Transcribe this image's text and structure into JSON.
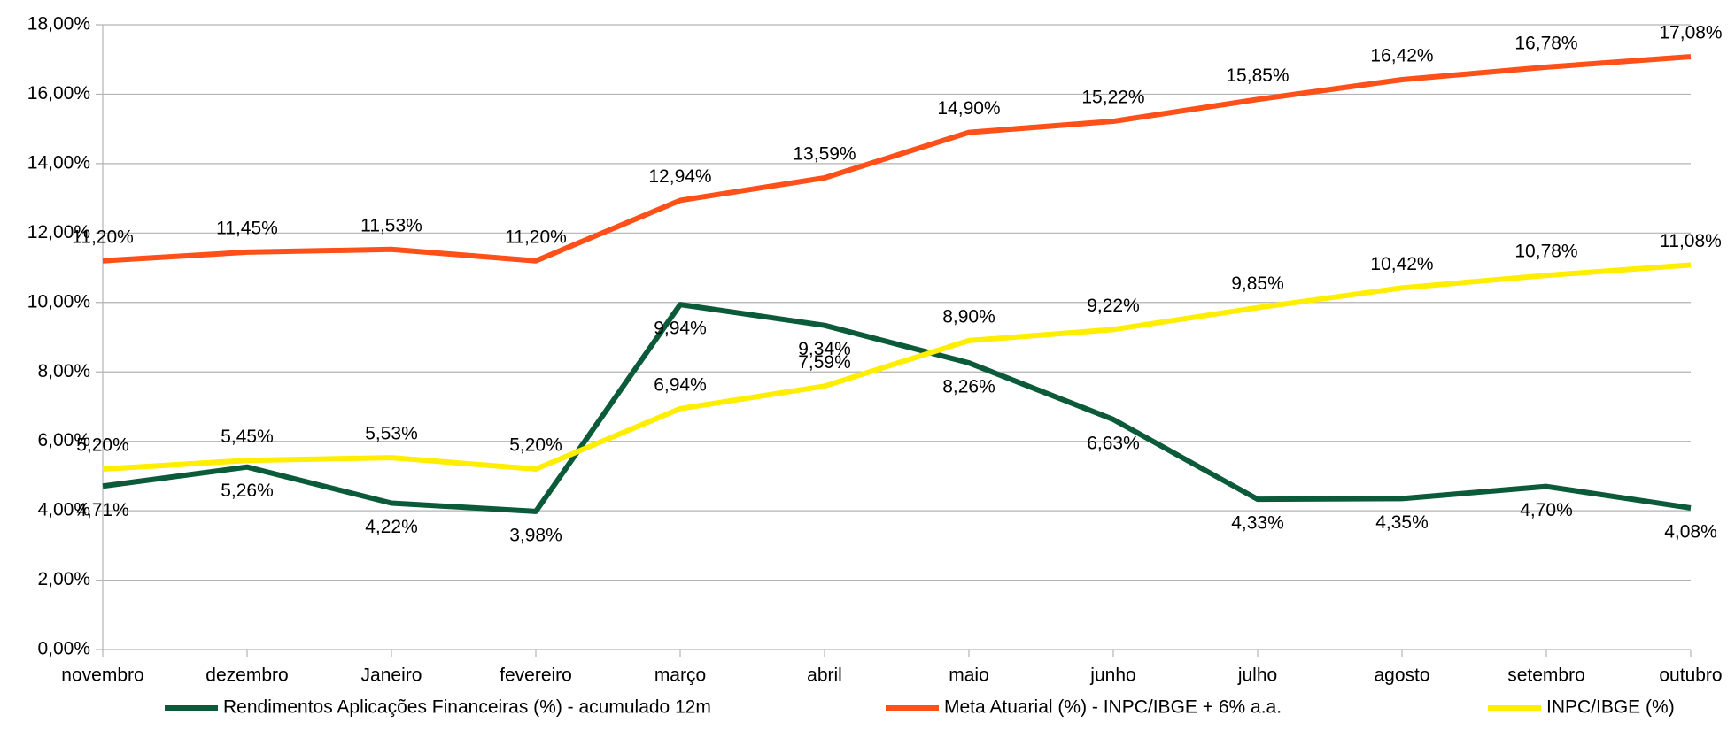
{
  "chart_data": {
    "type": "line",
    "categories": [
      "novembro",
      "dezembro",
      "Janeiro",
      "fevereiro",
      "março",
      "abril",
      "maio",
      "junho",
      "julho",
      "agosto",
      "setembro",
      "outubro"
    ],
    "series": [
      {
        "name": "Rendimentos Aplicações Financeiras (%) - acumulado 12m",
        "color": "#0b5a3a",
        "values": [
          4.71,
          5.26,
          4.22,
          3.98,
          9.94,
          9.34,
          8.26,
          6.63,
          4.33,
          4.35,
          4.7,
          4.08
        ],
        "value_labels": [
          "4,71%",
          "5,26%",
          "4,22%",
          "3,98%",
          "9,94%",
          "9,34%",
          "8,26%",
          "6,63%",
          "4,33%",
          "4,35%",
          "4,70%",
          "4,08%"
        ]
      },
      {
        "name": "Meta Atuarial (%) - INPC/IBGE + 6% a.a.",
        "color": "#ff5019",
        "values": [
          11.2,
          11.45,
          11.53,
          11.2,
          12.94,
          13.59,
          14.9,
          15.22,
          15.85,
          16.42,
          16.78,
          17.08
        ],
        "value_labels": [
          "11,20%",
          "11,45%",
          "11,53%",
          "11,20%",
          "12,94%",
          "13,59%",
          "14,90%",
          "15,22%",
          "15,85%",
          "16,42%",
          "16,78%",
          "17,08%"
        ]
      },
      {
        "name": "INPC/IBGE (%)",
        "color": "#ffee00",
        "values": [
          5.2,
          5.45,
          5.53,
          5.2,
          6.94,
          7.59,
          8.9,
          9.22,
          9.85,
          10.42,
          10.78,
          11.08
        ],
        "value_labels": [
          "5,20%",
          "5,45%",
          "5,53%",
          "5,20%",
          "6,94%",
          "7,59%",
          "8,90%",
          "9,22%",
          "9,85%",
          "10,42%",
          "10,78%",
          "11,08%"
        ]
      }
    ],
    "ylim": [
      0,
      18
    ],
    "yticks": [
      {
        "value": 0,
        "label": "0,00%"
      },
      {
        "value": 2,
        "label": "2,00%"
      },
      {
        "value": 4,
        "label": "4,00%"
      },
      {
        "value": 6,
        "label": "6,00%"
      },
      {
        "value": 8,
        "label": "8,00%"
      },
      {
        "value": 10,
        "label": "10,00%"
      },
      {
        "value": 12,
        "label": "12,00%"
      },
      {
        "value": 14,
        "label": "14,00%"
      },
      {
        "value": 16,
        "label": "16,00%"
      },
      {
        "value": 18,
        "label": "18,00%"
      }
    ],
    "grid": true,
    "legend": "bottom"
  }
}
